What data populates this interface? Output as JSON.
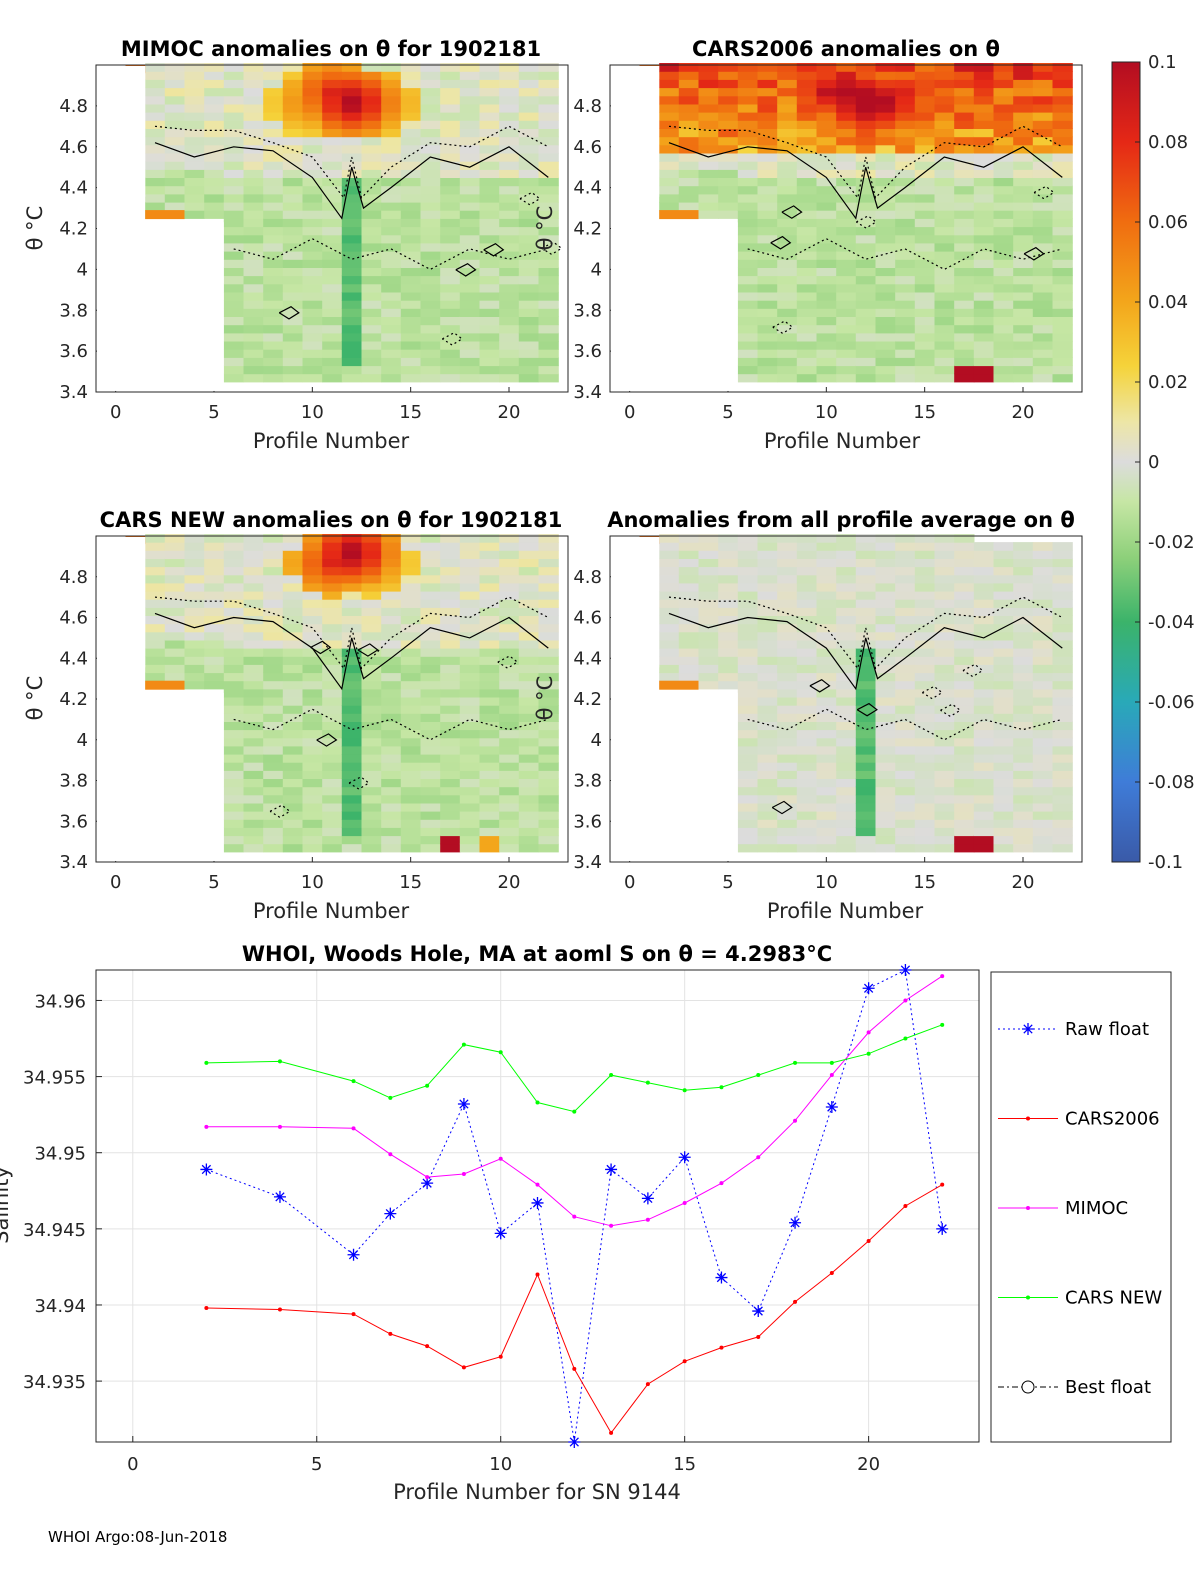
{
  "footer": "WHOI Argo:08-Jun-2018",
  "panels": [
    {
      "id": "mimoc",
      "title": "MIMOC anomalies on θ  for 1902181",
      "xlabel": "Profile Number",
      "ylabel": "θ °C",
      "xticks": [
        "0",
        "5",
        "10",
        "15",
        "20"
      ],
      "yticks": [
        "3.4",
        "3.6",
        "3.8",
        "4",
        "4.2",
        "4.4",
        "4.6",
        "4.8"
      ],
      "xlim": [
        -1,
        23
      ],
      "ylim": [
        3.4,
        5.0
      ],
      "hot": [
        [
          12,
          4.8,
          0.09
        ],
        [
          11,
          4.85,
          0.07
        ],
        [
          13,
          4.8,
          0.06
        ],
        [
          10,
          4.8,
          0.05
        ]
      ],
      "bottom_hot": []
    },
    {
      "id": "cars2006",
      "title": "CARS2006 anomalies on θ",
      "xlabel": "Profile Number",
      "ylabel": "θ °C",
      "xticks": [
        "0",
        "5",
        "10",
        "15",
        "20"
      ],
      "yticks": [
        "3.4",
        "3.6",
        "3.8",
        "4",
        "4.2",
        "4.4",
        "4.6",
        "4.8"
      ],
      "xlim": [
        -1,
        23
      ],
      "ylim": [
        3.4,
        5.0
      ],
      "hot": [
        [
          12,
          4.8,
          0.1
        ],
        [
          11,
          4.85,
          0.09
        ],
        [
          13,
          4.8,
          0.09
        ],
        [
          10,
          4.85,
          0.08
        ],
        [
          14,
          4.85,
          0.07
        ]
      ],
      "bottom_hot": [
        [
          17.5,
          3.4,
          0.1
        ]
      ]
    },
    {
      "id": "carsnew",
      "title": "CARS NEW anomalies on θ for 1902181",
      "xlabel": "Profile Number",
      "ylabel": "θ °C",
      "xticks": [
        "0",
        "5",
        "10",
        "15",
        "20"
      ],
      "yticks": [
        "3.4",
        "3.6",
        "3.8",
        "4",
        "4.2",
        "4.4",
        "4.6",
        "4.8"
      ],
      "xlim": [
        -1,
        23
      ],
      "ylim": [
        3.4,
        5.0
      ],
      "hot": [
        [
          12,
          4.9,
          0.09
        ],
        [
          11,
          4.85,
          0.07
        ],
        [
          13,
          4.85,
          0.05
        ]
      ],
      "bottom_hot": [
        [
          17,
          3.4,
          0.1
        ],
        [
          19,
          3.4,
          0.04
        ]
      ]
    },
    {
      "id": "allavg",
      "title": "Anomalies from all profile average on θ",
      "xlabel": "Profile Number",
      "ylabel": "θ °C",
      "xticks": [
        "0",
        "5",
        "10",
        "15",
        "20"
      ],
      "yticks": [
        "3.4",
        "3.6",
        "3.8",
        "4",
        "4.2",
        "4.4",
        "4.6",
        "4.8"
      ],
      "xlim": [
        -1,
        23
      ],
      "ylim": [
        3.4,
        5.0
      ],
      "hot": [],
      "bottom_hot": [
        [
          17.5,
          3.4,
          0.1
        ]
      ]
    }
  ],
  "colorbar": {
    "ticks": [
      "0.1",
      "0.08",
      "0.06",
      "0.04",
      "0.02",
      "0",
      "-0.02",
      "-0.04",
      "-0.06",
      "-0.08",
      "-0.1"
    ],
    "range": [
      -0.1,
      0.1
    ]
  },
  "chart_data": {
    "type": "line",
    "title": "WHOI, Woods Hole, MA at aoml S on θ = 4.2983°C",
    "xlabel": "Profile Number for SN 9144",
    "ylabel": "Salinity",
    "xlim": [
      -1,
      23
    ],
    "ylim": [
      34.931,
      34.962
    ],
    "xticks": [
      "0",
      "5",
      "10",
      "15",
      "20"
    ],
    "yticks": [
      "34.935",
      "34.94",
      "34.945",
      "34.95",
      "34.955",
      "34.96"
    ],
    "series": [
      {
        "name": "Raw float",
        "color": "#0000ff",
        "marker": "star",
        "dash": "dotted",
        "x": [
          2,
          4,
          6,
          7,
          8,
          9,
          10,
          11,
          12,
          13,
          14,
          15,
          16,
          17,
          18,
          19,
          20,
          21,
          22
        ],
        "y": [
          34.9489,
          34.9471,
          34.9433,
          34.946,
          34.948,
          34.9532,
          34.9447,
          34.9467,
          34.931,
          34.9489,
          34.947,
          34.9497,
          34.9418,
          34.9396,
          34.9454,
          34.953,
          34.9608,
          34.962,
          34.945
        ]
      },
      {
        "name": "CARS2006",
        "color": "#ff0000",
        "marker": "dot",
        "dash": "solid",
        "x": [
          2,
          4,
          6,
          7,
          8,
          9,
          10,
          11,
          12,
          13,
          14,
          15,
          16,
          17,
          18,
          19,
          20,
          21,
          22
        ],
        "y": [
          34.9398,
          34.9397,
          34.9394,
          34.9381,
          34.9373,
          34.9359,
          34.9366,
          34.942,
          34.9358,
          34.9316,
          34.9348,
          34.9363,
          34.9372,
          34.9379,
          34.9402,
          34.9421,
          34.9442,
          34.9465,
          34.9479
        ]
      },
      {
        "name": "MIMOC",
        "color": "#ff00ff",
        "marker": "dot",
        "dash": "solid",
        "x": [
          2,
          4,
          6,
          7,
          8,
          9,
          10,
          11,
          12,
          13,
          14,
          15,
          16,
          17,
          18,
          19,
          20,
          21,
          22
        ],
        "y": [
          34.9517,
          34.9517,
          34.9516,
          34.9499,
          34.9484,
          34.9486,
          34.9496,
          34.9479,
          34.9458,
          34.9452,
          34.9456,
          34.9467,
          34.948,
          34.9497,
          34.9521,
          34.9551,
          34.9579,
          34.96,
          34.9616
        ]
      },
      {
        "name": "CARS NEW",
        "color": "#00ff00",
        "marker": "dot",
        "dash": "solid",
        "x": [
          2,
          4,
          6,
          7,
          8,
          9,
          10,
          11,
          12,
          13,
          14,
          15,
          16,
          17,
          18,
          19,
          20,
          21,
          22
        ],
        "y": [
          34.9559,
          34.956,
          34.9547,
          34.9536,
          34.9544,
          34.9571,
          34.9566,
          34.9533,
          34.9527,
          34.9551,
          34.9546,
          34.9541,
          34.9543,
          34.9551,
          34.9559,
          34.9559,
          34.9565,
          34.9575,
          34.9584
        ]
      },
      {
        "name": "Best float",
        "color": "#000000",
        "marker": "circle",
        "dash": "dashdot",
        "x": [],
        "y": []
      }
    ]
  }
}
